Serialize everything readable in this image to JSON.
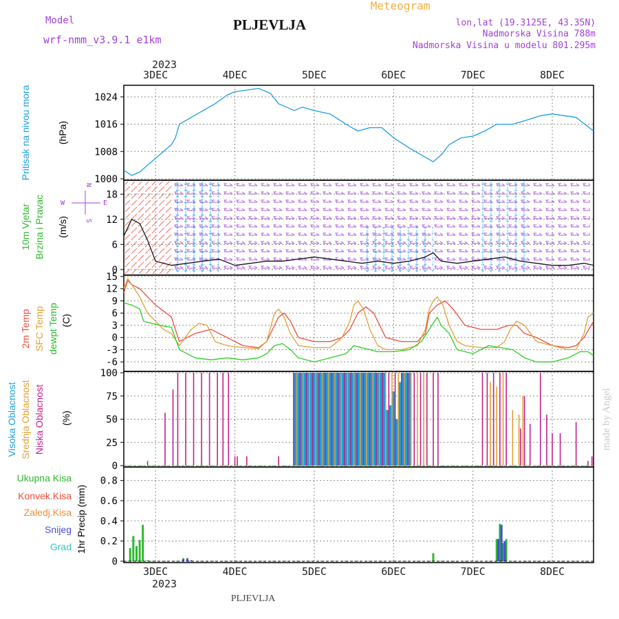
{
  "header": {
    "model_label": "Model",
    "model_name": "wrf-nmm_v3.9.1  e1km",
    "station": "PLJEVLJA",
    "meteogram_label": "Meteogram",
    "location": "lon,lat (19.3125E, 43.35N)",
    "elevation": "Nadmorska Visina 788m",
    "model_elevation": "Nadmorska Visina u modelu 801.295m",
    "footer_station": "PLJEVLJA",
    "watermark": "made by Angel"
  },
  "axes": {
    "year_label": "2023",
    "days": [
      "3DEC",
      "4DEC",
      "5DEC",
      "6DEC",
      "7DEC",
      "8DEC"
    ],
    "x_start_day": 2.6,
    "x_end_day": 8.52
  },
  "colors": {
    "pressure": "#1a9ee0",
    "temp": "#f04a3a",
    "sfc": "#e0a030",
    "dewpt": "#2ccd22",
    "high_cloud": "#1a9ee0",
    "mid_cloud": "#e0a030",
    "low_cloud": "#c0208a",
    "precip_total": "#2cb82c",
    "convective": "#f04a3a",
    "freezing": "#f08c30",
    "snow": "#4a4ae0",
    "graupel": "#2cc8c8",
    "wind_labels": "#a040d8",
    "header_purple": "#a040d8",
    "header_orange": "#f0b040"
  },
  "chart_data": [
    {
      "type": "line",
      "panel": "pressure",
      "ylabel_1": "Pritisak na nivou mora",
      "ylabel_2": "(hPa)",
      "yticks": [
        1000,
        1008,
        1016,
        1024
      ],
      "ylim": [
        1000,
        1027
      ],
      "grid": true,
      "series": [
        {
          "name": "Pritisak na nivou mora",
          "x": [
            2.6,
            2.7,
            2.8,
            2.9,
            3.0,
            3.1,
            3.2,
            3.25,
            3.3,
            3.45,
            3.6,
            3.75,
            3.9,
            4.0,
            4.15,
            4.3,
            4.45,
            4.55,
            4.65,
            4.75,
            4.85,
            5.0,
            5.2,
            5.4,
            5.55,
            5.7,
            5.85,
            6.0,
            6.2,
            6.35,
            6.5,
            6.6,
            6.7,
            6.85,
            7.0,
            7.15,
            7.3,
            7.5,
            7.65,
            7.85,
            8.0,
            8.15,
            8.3,
            8.52
          ],
          "y": [
            1002.5,
            1001,
            1002,
            1004,
            1006,
            1008,
            1010,
            1012,
            1016,
            1018,
            1020,
            1022,
            1024.5,
            1025.5,
            1026,
            1026.5,
            1025,
            1022,
            1021,
            1020,
            1021,
            1020,
            1019,
            1016,
            1014,
            1015,
            1015,
            1012,
            1009,
            1007,
            1005,
            1007,
            1010,
            1012,
            1012.5,
            1014,
            1016,
            1016,
            1017,
            1018.5,
            1019,
            1018.5,
            1018,
            1014
          ]
        }
      ]
    },
    {
      "type": "line",
      "panel": "wind",
      "ylabel_1": "10m Vjetar",
      "ylabel_2": "Brzina i Pravac",
      "ylabel_3": "(m/s)",
      "compass": [
        "W",
        "N",
        "E",
        "S"
      ],
      "yticks": [
        0,
        6,
        12,
        18
      ],
      "ylim": [
        -1,
        21
      ],
      "grid": true,
      "series": [
        {
          "name": "wind speed",
          "x": [
            2.6,
            2.7,
            2.8,
            2.9,
            3.0,
            3.2,
            3.4,
            3.6,
            3.8,
            4.0,
            4.2,
            4.4,
            4.6,
            4.8,
            5.0,
            5.2,
            5.4,
            5.6,
            5.8,
            6.0,
            6.2,
            6.4,
            6.5,
            6.6,
            6.8,
            7.0,
            7.2,
            7.4,
            7.6,
            7.8,
            8.0,
            8.2,
            8.4,
            8.52
          ],
          "y": [
            8,
            12,
            11,
            7,
            2,
            1,
            1.5,
            2,
            2.5,
            1,
            1.5,
            2,
            2,
            2.5,
            3,
            2.5,
            2,
            1.5,
            2,
            1.5,
            2,
            3,
            4,
            2,
            1.5,
            2,
            2.5,
            3,
            2,
            1.5,
            1,
            1,
            1.5,
            1
          ]
        }
      ]
    },
    {
      "type": "line",
      "panel": "temperature",
      "ylabel_1": "2m Temp",
      "ylabel_2": "SFC Temp",
      "ylabel_3": "dewpt Temp",
      "ylabel_4": "(C)",
      "yticks": [
        -6,
        -3,
        0,
        3,
        6,
        9,
        12,
        15
      ],
      "ylim": [
        -8,
        15
      ],
      "grid": true,
      "series": [
        {
          "name": "2m Temp",
          "x": [
            2.6,
            2.65,
            2.7,
            2.8,
            2.9,
            3.0,
            3.1,
            3.2,
            3.3,
            3.5,
            3.7,
            3.9,
            4.1,
            4.3,
            4.4,
            4.5,
            4.55,
            4.62,
            4.7,
            4.8,
            5.0,
            5.2,
            5.35,
            5.45,
            5.55,
            5.65,
            5.75,
            5.9,
            6.1,
            6.3,
            6.4,
            6.45,
            6.55,
            6.65,
            6.75,
            6.9,
            7.1,
            7.3,
            7.45,
            7.55,
            7.65,
            7.8,
            8.0,
            8.2,
            8.3,
            8.4,
            8.52
          ],
          "y": [
            11,
            14,
            13,
            12,
            10,
            8,
            6.5,
            5,
            -1,
            1,
            2,
            0,
            -2,
            -2.5,
            -1,
            3,
            5,
            6,
            4,
            0,
            -1,
            -1,
            0,
            2,
            6,
            7.5,
            6,
            0,
            -1,
            -1,
            1,
            6,
            8,
            9,
            7,
            3,
            2,
            2,
            3,
            3,
            1,
            0,
            -2,
            -2.5,
            -2,
            0,
            4
          ]
        },
        {
          "name": "SFC Temp",
          "x": [
            2.6,
            2.65,
            2.7,
            2.8,
            2.9,
            3.0,
            3.1,
            3.2,
            3.3,
            3.45,
            3.55,
            3.65,
            3.75,
            3.9,
            4.1,
            4.3,
            4.4,
            4.5,
            4.55,
            4.62,
            4.7,
            4.8,
            5.0,
            5.2,
            5.35,
            5.45,
            5.5,
            5.55,
            5.62,
            5.7,
            5.8,
            5.9,
            6.1,
            6.3,
            6.4,
            6.45,
            6.5,
            6.55,
            6.62,
            6.7,
            6.8,
            6.9,
            7.1,
            7.3,
            7.4,
            7.47,
            7.55,
            7.65,
            7.8,
            8.0,
            8.2,
            8.3,
            8.4,
            8.45,
            8.52
          ],
          "y": [
            12,
            14.5,
            13,
            10,
            6,
            4,
            2,
            1,
            -2,
            2,
            3.5,
            3,
            -1,
            -2,
            -2.5,
            -2.7,
            -1,
            6,
            7,
            5,
            1,
            -2,
            -2.5,
            -2.5,
            0,
            4,
            8,
            9,
            7,
            2,
            -2,
            -3,
            -3,
            -2,
            2,
            7,
            9,
            10,
            8,
            3,
            -1,
            -2,
            -2.5,
            -2.5,
            -1,
            2,
            4,
            3,
            -1,
            -2,
            -3,
            -3,
            1,
            5,
            6
          ]
        },
        {
          "name": "dewpt Temp",
          "x": [
            2.6,
            2.7,
            2.8,
            2.85,
            2.95,
            3.05,
            3.2,
            3.3,
            3.5,
            3.7,
            3.9,
            4.1,
            4.3,
            4.4,
            4.5,
            4.6,
            4.7,
            4.8,
            5.0,
            5.2,
            5.4,
            5.5,
            5.6,
            5.7,
            5.8,
            6.0,
            6.2,
            6.35,
            6.45,
            6.5,
            6.55,
            6.6,
            6.7,
            6.8,
            7.0,
            7.2,
            7.35,
            7.5,
            7.65,
            7.8,
            8.0,
            8.2,
            8.35,
            8.45,
            8.52
          ],
          "y": [
            8.5,
            8,
            7,
            4,
            3.5,
            3,
            2.5,
            -3,
            -5,
            -5.5,
            -5,
            -5.5,
            -5,
            -4,
            -2,
            -1.5,
            -3,
            -5,
            -6,
            -5,
            -4,
            -2,
            -2.5,
            -3,
            -3.5,
            -3.5,
            -3,
            -1,
            2,
            3.5,
            5,
            3,
            1,
            -3,
            -4,
            -2,
            -2.5,
            -3,
            -5,
            -6,
            -6,
            -5,
            -3.5,
            -3.5,
            -4.5
          ]
        }
      ]
    },
    {
      "type": "bar",
      "panel": "clouds",
      "ylabel_1": "Visoka Oblacnost",
      "ylabel_2": "Srednja Oblacnost",
      "ylabel_3": "Niska Oblacnost",
      "ylabel_4": "(%)",
      "yticks": [
        0,
        25,
        50,
        75,
        100
      ],
      "ylim": [
        0,
        100
      ],
      "grid": true,
      "series": [
        {
          "name": "Visoka Oblacnost",
          "x": [
            4.76,
            4.8,
            4.84,
            4.88,
            4.92,
            4.96,
            5.0,
            5.04,
            5.08,
            5.12,
            5.16,
            5.2,
            5.24,
            5.28,
            5.32,
            5.36,
            5.4,
            5.44,
            5.48,
            5.52,
            5.56,
            5.6,
            5.64,
            5.68,
            5.72,
            5.76,
            5.8,
            5.84,
            5.88,
            5.92,
            5.96,
            6.0,
            6.04,
            6.08,
            6.12,
            6.16,
            6.2
          ],
          "y": [
            100,
            100,
            100,
            100,
            100,
            100,
            100,
            100,
            100,
            100,
            100,
            100,
            100,
            100,
            100,
            100,
            100,
            100,
            100,
            100,
            100,
            100,
            100,
            100,
            100,
            100,
            100,
            100,
            100,
            60,
            65,
            80,
            50,
            90,
            100,
            100,
            100
          ]
        },
        {
          "name": "Srednja Oblacnost",
          "x": [
            4.78,
            4.86,
            4.94,
            5.02,
            5.1,
            5.18,
            5.26,
            5.34,
            5.42,
            5.5,
            5.58,
            5.66,
            5.74,
            5.82,
            5.9,
            5.98,
            6.06,
            6.14,
            6.22,
            6.3,
            6.38,
            7.22,
            7.3,
            7.38,
            7.5,
            7.58,
            7.63
          ],
          "y": [
            100,
            100,
            100,
            100,
            100,
            100,
            100,
            100,
            100,
            100,
            100,
            100,
            100,
            100,
            100,
            100,
            100,
            100,
            100,
            100,
            100,
            90,
            85,
            100,
            60,
            55,
            75
          ]
        },
        {
          "name": "Niska Oblacnost",
          "x": [
            2.9,
            3.12,
            3.22,
            3.28,
            3.38,
            3.48,
            3.58,
            3.68,
            3.78,
            3.85,
            3.92,
            4.0,
            4.03,
            4.15,
            4.55,
            4.74,
            4.82,
            4.9,
            4.98,
            5.06,
            5.14,
            5.22,
            5.3,
            5.38,
            5.46,
            5.54,
            5.62,
            5.7,
            5.78,
            5.86,
            5.94,
            6.02,
            6.1,
            6.18,
            6.26,
            6.34,
            6.42,
            6.5,
            6.56,
            7.12,
            7.18,
            7.26,
            7.34,
            7.42,
            7.6,
            7.65,
            7.72,
            7.85,
            7.93,
            8.0,
            8.1,
            8.3,
            8.45,
            8.5
          ],
          "y": [
            5,
            57,
            82,
            100,
            100,
            100,
            100,
            100,
            100,
            100,
            100,
            10,
            10,
            10,
            10,
            100,
            100,
            100,
            100,
            100,
            100,
            100,
            100,
            100,
            100,
            100,
            100,
            100,
            100,
            100,
            100,
            100,
            100,
            100,
            100,
            100,
            100,
            100,
            100,
            100,
            100,
            100,
            100,
            100,
            40,
            75,
            45,
            100,
            55,
            35,
            35,
            47,
            5,
            10
          ]
        }
      ]
    },
    {
      "type": "bar",
      "panel": "precipitation",
      "legend": [
        "Ukupna Kisa",
        "Konvek.Kisa",
        "Zaledj.Kisa",
        "Snijeg",
        "Grad"
      ],
      "ylabel": "1hr Precip (mm)",
      "yticks": [
        0,
        0.2,
        0.4,
        0.6,
        0.8
      ],
      "ylim": [
        0,
        0.92
      ],
      "grid": true,
      "series": [
        {
          "name": "Ukupna Kisa",
          "x": [
            2.68,
            2.72,
            2.76,
            2.8,
            2.84,
            2.9,
            3.35,
            3.4,
            6.5,
            7.3,
            7.34,
            7.38,
            7.42
          ],
          "y": [
            0.13,
            0.25,
            0.15,
            0.21,
            0.36,
            0.01,
            0.03,
            0.02,
            0.08,
            0.22,
            0.37,
            0.18,
            0.22
          ]
        },
        {
          "name": "Snijeg",
          "x": [
            3.35,
            3.4,
            3.45,
            7.32,
            7.36,
            7.4
          ],
          "y": [
            0.02,
            0.03,
            0.01,
            0.22,
            0.36,
            0.2
          ]
        }
      ]
    }
  ]
}
